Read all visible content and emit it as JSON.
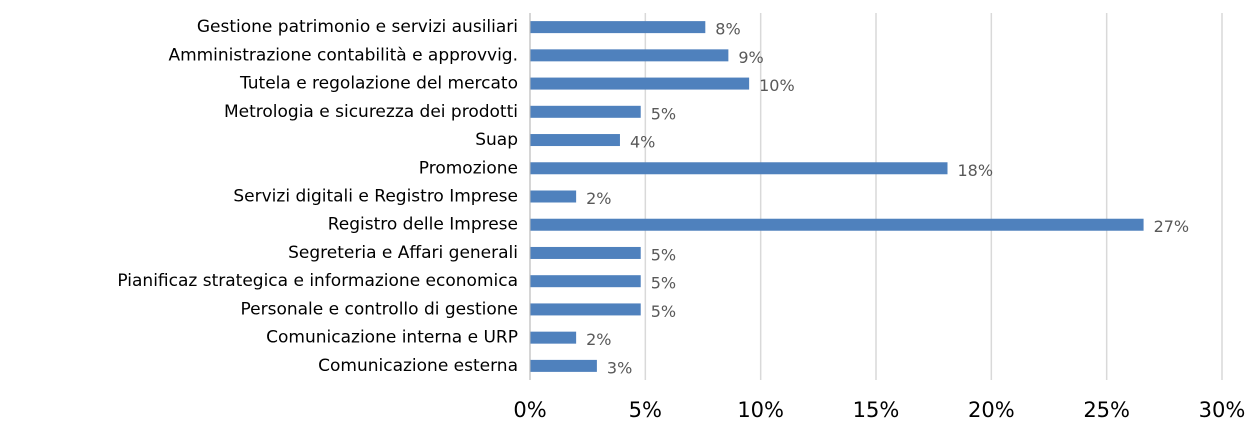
{
  "chart_data": {
    "type": "bar",
    "orientation": "horizontal",
    "categories": [
      "Gestione patrimonio e servizi ausiliari",
      "Amministrazione contabilità e approvvig.",
      "Tutela e regolazione del mercato",
      "Metrologia e sicurezza dei prodotti",
      "Suap",
      "Promozione",
      "Servizi digitali e Registro Imprese",
      "Registro delle Imprese",
      "Segreteria e Affari generali",
      "Pianificaz strategica e informazione economica",
      "Personale e controllo di gestione",
      "Comunicazione interna e URP",
      "Comunicazione esterna"
    ],
    "values": [
      7.6,
      8.6,
      9.5,
      4.8,
      3.9,
      18.1,
      2.0,
      26.6,
      4.8,
      4.8,
      4.8,
      2.0,
      2.9
    ],
    "value_labels": [
      "8%",
      "9%",
      "10%",
      "5%",
      "4%",
      "18%",
      "2%",
      "27%",
      "5%",
      "5%",
      "5%",
      "2%",
      "3%"
    ],
    "color": "#4f81bd",
    "xlim": [
      0,
      30
    ],
    "xticks": [
      {
        "value": 0,
        "label": "0%"
      },
      {
        "value": 5,
        "label": "5%"
      },
      {
        "value": 10,
        "label": "10%"
      },
      {
        "value": 15,
        "label": "15%"
      },
      {
        "value": 20,
        "label": "20%"
      },
      {
        "value": 25,
        "label": "25%"
      },
      {
        "value": 30,
        "label": "30%"
      }
    ],
    "grid": true
  }
}
